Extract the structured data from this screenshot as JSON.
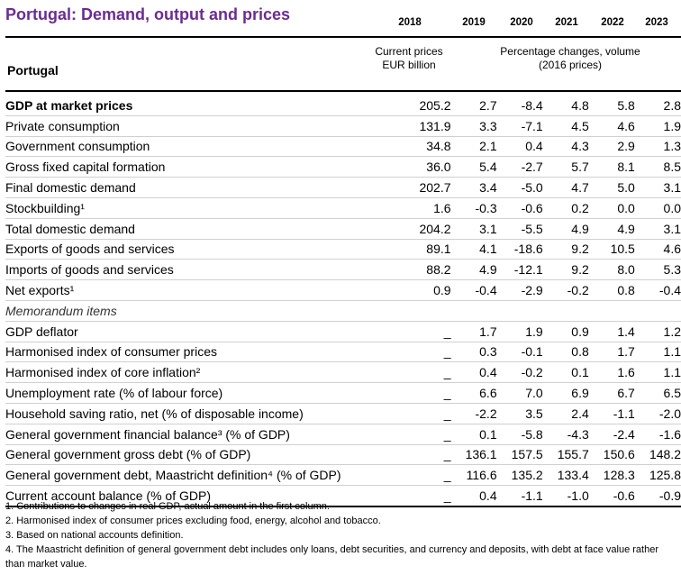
{
  "title": "Portugal: Demand, output and prices",
  "years": [
    "2018",
    "2019",
    "2020",
    "2021",
    "2022",
    "2023"
  ],
  "subheaders": {
    "left_line1": "Current prices",
    "left_line2": "EUR billion",
    "right_line1": "Percentage changes, volume",
    "right_line2": "(2016 prices)"
  },
  "country": "Portugal",
  "rows": [
    {
      "label": "GDP at market prices",
      "v": [
        "205.2",
        "2.7",
        "-8.4",
        "4.8",
        "5.8",
        "2.8"
      ]
    },
    {
      "label": "Private consumption",
      "v": [
        "131.9",
        "3.3",
        "-7.1",
        "4.5",
        "4.6",
        "1.9"
      ]
    },
    {
      "label": "Government consumption",
      "v": [
        "34.8",
        "2.1",
        "0.4",
        "4.3",
        "2.9",
        "1.3"
      ]
    },
    {
      "label": "Gross fixed capital formation",
      "v": [
        "36.0",
        "5.4",
        "-2.7",
        "5.7",
        "8.1",
        "8.5"
      ]
    },
    {
      "label": "Final domestic demand",
      "v": [
        "202.7",
        "3.4",
        "-5.0",
        "4.7",
        "5.0",
        "3.1"
      ]
    },
    {
      "label": "Stockbuilding¹",
      "v": [
        "1.6",
        "-0.3",
        "-0.6",
        "0.2",
        "0.0",
        "0.0"
      ]
    },
    {
      "label": "Total domestic demand",
      "v": [
        "204.2",
        "3.1",
        "-5.5",
        "4.9",
        "4.9",
        "3.1"
      ]
    },
    {
      "label": "Exports of goods and services",
      "v": [
        "89.1",
        "4.1",
        "-18.6",
        "9.2",
        "10.5",
        "4.6"
      ]
    },
    {
      "label": "Imports of goods and services",
      "v": [
        "88.2",
        "4.9",
        "-12.1",
        "9.2",
        "8.0",
        "5.3"
      ]
    },
    {
      "label": "Net exports¹",
      "v": [
        "0.9",
        "-0.4",
        "-2.9",
        "-0.2",
        "0.8",
        "-0.4"
      ]
    },
    {
      "label": "Memorandum items"
    },
    {
      "label": "GDP deflator",
      "v": [
        "_",
        "1.7",
        "1.9",
        "0.9",
        "1.4",
        "1.2"
      ]
    },
    {
      "label": "Harmonised index of consumer prices",
      "v": [
        "_",
        "0.3",
        "-0.1",
        "0.8",
        "1.7",
        "1.1"
      ]
    },
    {
      "label": "Harmonised index of core inflation²",
      "v": [
        "_",
        "0.4",
        "-0.2",
        "0.1",
        "1.6",
        "1.1"
      ]
    },
    {
      "label": "Unemployment rate (% of labour force)",
      "v": [
        "_",
        "6.6",
        "7.0",
        "6.9",
        "6.7",
        "6.5"
      ]
    },
    {
      "label": "Household saving ratio, net (% of disposable income)",
      "v": [
        "_",
        "-2.2",
        "3.5",
        "2.4",
        "-1.1",
        "-2.0"
      ]
    },
    {
      "label": "General government financial balance³ (% of GDP)",
      "v": [
        "_",
        "0.1",
        "-5.8",
        "-4.3",
        "-2.4",
        "-1.6"
      ]
    },
    {
      "label": "General government gross debt (% of GDP)",
      "v": [
        "_",
        "136.1",
        "157.5",
        "155.7",
        "150.6",
        "148.2"
      ]
    },
    {
      "label": "General government debt, Maastricht definition⁴ (% of GDP)",
      "v": [
        "_",
        "116.6",
        "135.2",
        "133.4",
        "128.3",
        "125.8"
      ]
    },
    {
      "label": "Current account balance (% of GDP)",
      "v": [
        "_",
        "0.4",
        "-1.1",
        "-1.0",
        "-0.6",
        "-0.9"
      ]
    }
  ],
  "notes": [
    "1. Contributions to changes in real GDP, actual amount in the first column.",
    "2. Harmonised index of consumer prices excluding food, energy, alcohol and tobacco.",
    "3. Based on national accounts definition.",
    "4. The Maastricht definition of general government debt includes only loans, debt securities, and currency and deposits, with debt at face value rather than market value."
  ]
}
